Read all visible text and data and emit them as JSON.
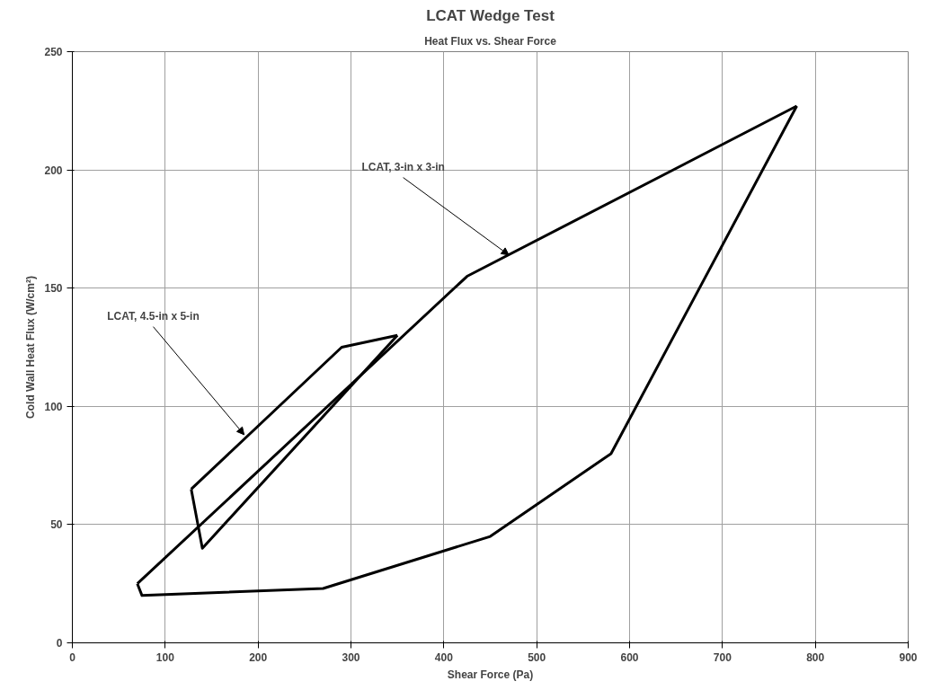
{
  "chart_data": {
    "type": "line",
    "title": "LCAT Wedge Test",
    "subtitle": "Heat Flux vs. Shear Force",
    "xlabel": "Shear Force (Pa)",
    "ylabel": "Cold Wall Heat Flux (W/cm²)",
    "xlim": [
      0,
      900
    ],
    "xticks": [
      0,
      100,
      200,
      300,
      400,
      500,
      600,
      700,
      800,
      900
    ],
    "ylim": [
      0,
      250
    ],
    "yticks": [
      0,
      50,
      100,
      150,
      200,
      250
    ],
    "grid": true,
    "marker": "none",
    "line_style": "solid",
    "series": [
      {
        "color": "#000000",
        "x": [
          70,
          425,
          780
        ],
        "values": [
          25,
          155,
          227
        ]
      },
      {
        "color": "#000000",
        "x": [
          70,
          75,
          270,
          450,
          580,
          780
        ],
        "values": [
          25,
          20,
          23,
          45,
          80,
          227
        ]
      },
      {
        "color": "#000000",
        "x": [
          128,
          290,
          350
        ],
        "values": [
          65,
          125,
          130
        ]
      },
      {
        "color": "#000000",
        "x": [
          128,
          140,
          350
        ],
        "values": [
          65,
          40,
          130
        ]
      }
    ],
    "annotations": [
      {
        "text": "LCAT, 3-in x 3-in",
        "x": 470,
        "y": 164
      },
      {
        "text": "LCAT, 4.5-in x 5-in",
        "x": 185,
        "y": 88
      }
    ]
  }
}
